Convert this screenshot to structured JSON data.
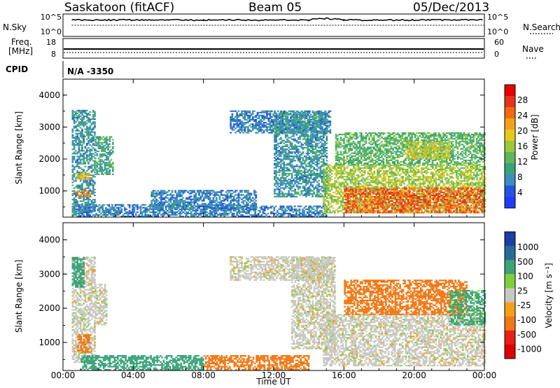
{
  "header": {
    "station": "Saskatoon (fitACF)",
    "beam": "Beam 05",
    "date": "05/Dec/2013"
  },
  "top_strip": {
    "left_label": "N.Sky",
    "right_label": "N.Search",
    "left_ticks": [
      "10^5",
      "10^0"
    ],
    "right_ticks": [
      "10^5",
      "10^0"
    ]
  },
  "freq_strip": {
    "left_label_line1": "Freq.",
    "left_label_line2": "[MHz]",
    "right_label": "Nave",
    "left_ticks": [
      "18",
      "8"
    ],
    "right_ticks": [
      "60",
      "0"
    ]
  },
  "cpid": {
    "label": "CPID",
    "value": "N/A -3350"
  },
  "power_panel": {
    "ylabel": "Slant Range [km]",
    "yticks": [
      "1000",
      "2000",
      "3000",
      "4000"
    ],
    "colorbar_label": "Power [dB]",
    "colorbar_ticks": [
      "4",
      "8",
      "12",
      "16",
      "20",
      "24",
      "28"
    ]
  },
  "velocity_panel": {
    "ylabel": "Slant Range [km]",
    "yticks": [
      "1000",
      "2000",
      "3000",
      "4000"
    ],
    "colorbar_label": "Velocity [m s⁻¹]",
    "colorbar_ticks": [
      "1000",
      "500",
      "100",
      "25",
      "-25",
      "-100",
      "-500",
      "-1000"
    ]
  },
  "x_axis": {
    "label": "Time UT",
    "ticks": [
      "00:00",
      "04:00",
      "08:00",
      "12:00",
      "16:00",
      "20:00",
      "00:00"
    ]
  },
  "chart_data": [
    {
      "type": "line",
      "title": "Saskatoon (fitACF) Beam 05 05/Dec/2013",
      "xlabel": "Time UT",
      "xlim": [
        "00:00",
        "24:00"
      ],
      "ylabel": "N.Sky / N.Search",
      "log_scale": true,
      "series": [
        {
          "name": "N.Sky",
          "x": [
            0.5,
            2,
            4,
            6,
            8,
            10,
            12,
            14,
            15,
            16,
            18,
            20,
            22,
            24
          ],
          "values": [
            10000.0,
            10000.0,
            10000.0,
            10000.0,
            10000.0,
            10000.0,
            10000.0,
            10000.0,
            30000.0,
            10000.0,
            10000.0,
            10000.0,
            10000.0,
            10000.0
          ]
        }
      ]
    },
    {
      "type": "line",
      "xlabel": "Time UT",
      "ylabel": "Freq. [MHz] / Nave",
      "series": [
        {
          "name": "Freq.",
          "x": [
            0.5,
            24
          ],
          "values": [
            11.4,
            11.4
          ]
        },
        {
          "name": "Nave",
          "x": [
            0.5,
            24
          ],
          "values": [
            15,
            15
          ]
        }
      ]
    },
    {
      "type": "heatmap",
      "ylabel": "Slant Range [km]",
      "xlabel": "Time UT",
      "xlim": [
        0,
        24
      ],
      "ylim": [
        180,
        4500
      ],
      "colorbar": {
        "label": "Power [dB]",
        "range": [
          0,
          32
        ],
        "ticks": [
          4,
          8,
          12,
          16,
          20,
          24,
          28
        ]
      },
      "regions": [
        {
          "t0": 0.5,
          "t1": 1.8,
          "r0": 300,
          "r1": 3500,
          "level": 8
        },
        {
          "t0": 0.7,
          "t1": 1.6,
          "r0": 800,
          "r1": 1000,
          "level": 24
        },
        {
          "t0": 0.7,
          "t1": 1.6,
          "r0": 1350,
          "r1": 1550,
          "level": 20
        },
        {
          "t0": 1.8,
          "t1": 2.8,
          "r0": 1500,
          "r1": 2700,
          "level": 10
        },
        {
          "t0": 0.5,
          "t1": 10,
          "r0": 180,
          "r1": 550,
          "level": 6
        },
        {
          "t0": 5,
          "t1": 11,
          "r0": 400,
          "r1": 1000,
          "level": 6
        },
        {
          "t0": 10,
          "t1": 15,
          "r0": 180,
          "r1": 500,
          "level": 6
        },
        {
          "t0": 9.5,
          "t1": 15.2,
          "r0": 2800,
          "r1": 3500,
          "level": 6
        },
        {
          "t0": 12,
          "t1": 15,
          "r0": 800,
          "r1": 3500,
          "level": 8
        },
        {
          "t0": 14.8,
          "t1": 24,
          "r0": 300,
          "r1": 1800,
          "level": 16
        },
        {
          "t0": 16,
          "t1": 24,
          "r0": 300,
          "r1": 1100,
          "level": 26
        },
        {
          "t0": 15.5,
          "t1": 24,
          "r0": 1800,
          "r1": 2800,
          "level": 12
        },
        {
          "t0": 19.5,
          "t1": 22,
          "r0": 2000,
          "r1": 2500,
          "level": 18
        }
      ]
    },
    {
      "type": "heatmap",
      "ylabel": "Slant Range [km]",
      "xlabel": "Time UT",
      "xlim": [
        0,
        24
      ],
      "ylim": [
        180,
        4500
      ],
      "colorbar": {
        "label": "Velocity [m s⁻¹]",
        "ticks": [
          1000,
          500,
          100,
          25,
          -25,
          -100,
          -500,
          -1000
        ]
      },
      "regions": [
        {
          "t0": 0.5,
          "t1": 1.8,
          "r0": 400,
          "r1": 3500,
          "value": 0
        },
        {
          "t0": 0.5,
          "t1": 1.2,
          "r0": 2600,
          "r1": 3500,
          "value": 150
        },
        {
          "t0": 0.8,
          "t1": 1.6,
          "r0": 700,
          "r1": 1200,
          "value": -150
        },
        {
          "t0": 1.8,
          "t1": 2.5,
          "r0": 1500,
          "r1": 2700,
          "value": 0
        },
        {
          "t0": 1,
          "t1": 8,
          "r0": 180,
          "r1": 600,
          "value": 150
        },
        {
          "t0": 8,
          "t1": 14,
          "r0": 180,
          "r1": 600,
          "value": -150
        },
        {
          "t0": 9.5,
          "t1": 15.2,
          "r0": 2800,
          "r1": 3500,
          "value": 0
        },
        {
          "t0": 13,
          "t1": 15.5,
          "r0": 800,
          "r1": 3500,
          "value": 0
        },
        {
          "t0": 14.8,
          "t1": 24,
          "r0": 300,
          "r1": 1800,
          "value": 0
        },
        {
          "t0": 16,
          "t1": 23,
          "r0": 1800,
          "r1": 2800,
          "value": -150
        },
        {
          "t0": 22,
          "t1": 24,
          "r0": 1500,
          "r1": 2500,
          "value": 120
        }
      ]
    }
  ]
}
